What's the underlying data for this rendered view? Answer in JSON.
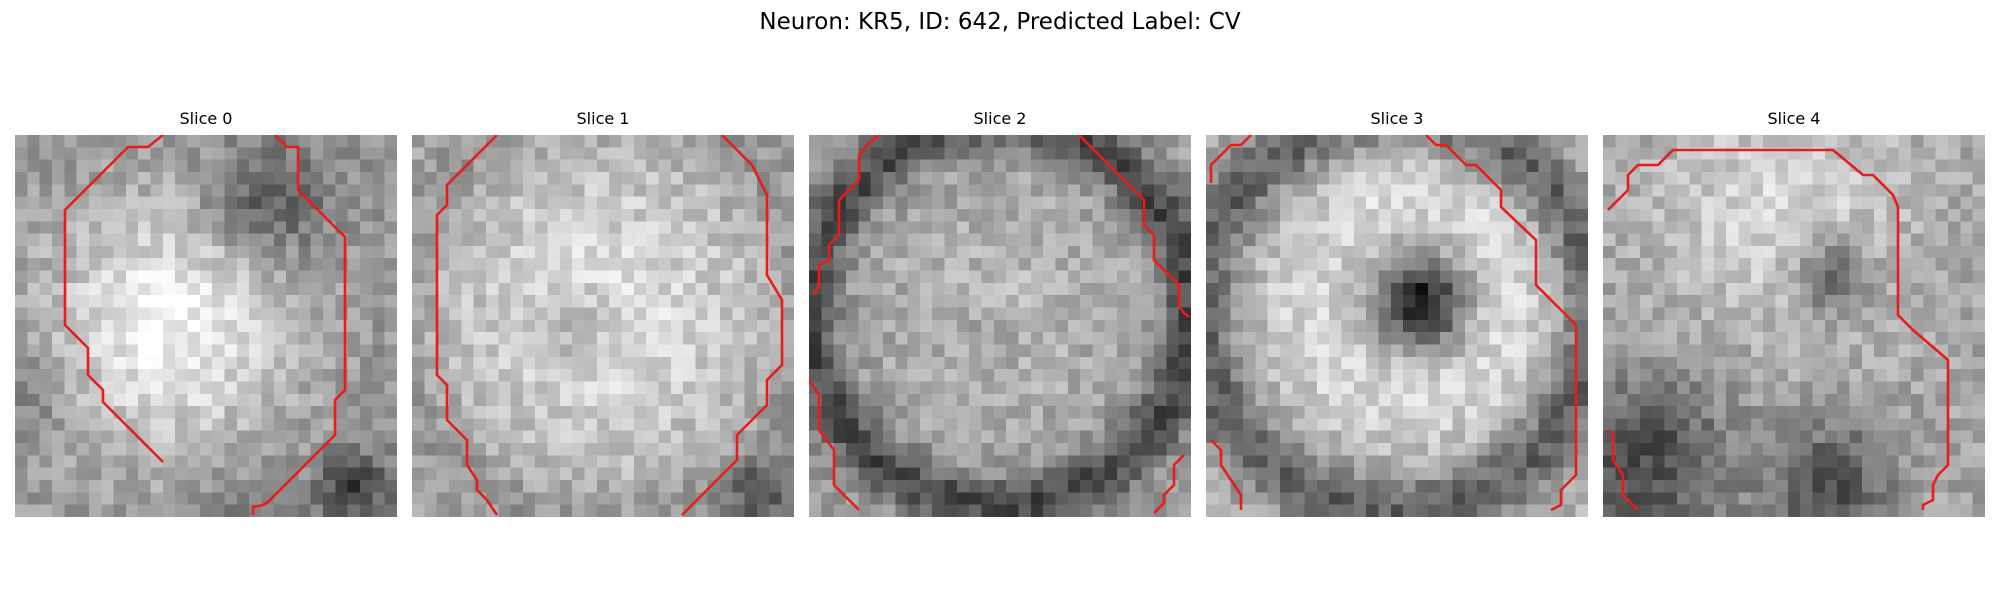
{
  "figure": {
    "title": "Neuron: KR5, ID: 642, Predicted Label: CV"
  },
  "contour_color": "#e81c1c",
  "colormap": "gray",
  "slices": [
    {
      "title": "Slice 0",
      "dark_features": "dark band along top-right, dark corner bottom-right, darker left edge",
      "bright_region": "large bright blob centre-left"
    },
    {
      "title": "Slice 1",
      "dark_features": "mottled gray border, dark corner bottom-right",
      "bright_region": "bright disc with slightly darker centre"
    },
    {
      "title": "Slice 2",
      "dark_features": "dark ring around cell, dark bottom band",
      "bright_region": "mid-gray textured interior"
    },
    {
      "title": "Slice 3",
      "dark_features": "dark nucleus at centre, dark bottom band",
      "bright_region": "bright ring around nucleus"
    },
    {
      "title": "Slice 4",
      "dark_features": "dark lower-left region, dark spot centre-right",
      "bright_region": "bright upper area"
    }
  ]
}
